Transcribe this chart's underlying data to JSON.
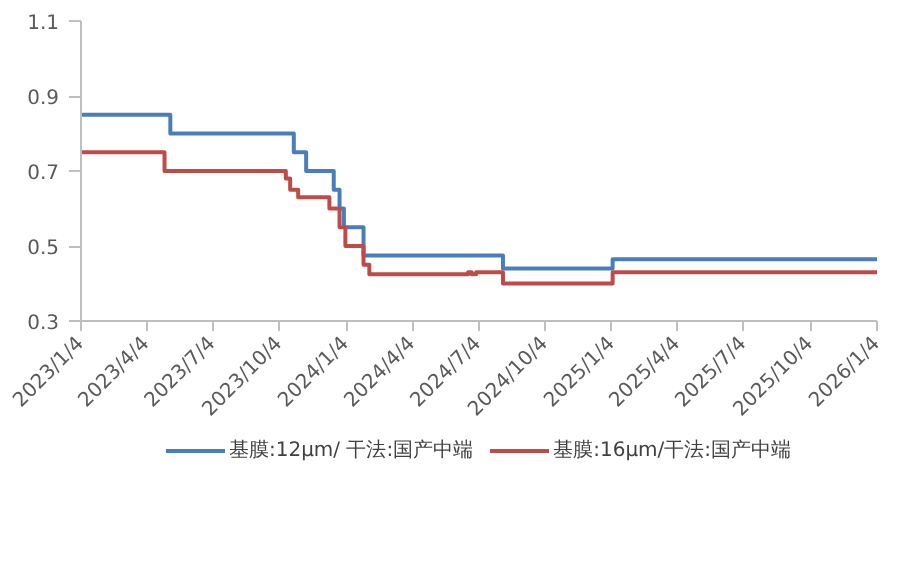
{
  "chart_data": {
    "type": "step",
    "legend": "bottom",
    "grid": false,
    "xlim": [
      "2023-01-04",
      "2026-01-04"
    ],
    "xticks": [
      {
        "value": "2023-01-04",
        "label": "2023/1/4"
      },
      {
        "value": "2023-04-04",
        "label": "2023/4/4"
      },
      {
        "value": "2023-07-04",
        "label": "2023/7/4"
      },
      {
        "value": "2023-10-04",
        "label": "2023/10/4"
      },
      {
        "value": "2024-01-04",
        "label": "2024/1/4"
      },
      {
        "value": "2024-04-04",
        "label": "2024/4/4"
      },
      {
        "value": "2024-07-04",
        "label": "2024/7/4"
      },
      {
        "value": "2024-10-04",
        "label": "2024/10/4"
      },
      {
        "value": "2025-01-04",
        "label": "2025/1/4"
      },
      {
        "value": "2025-04-04",
        "label": "2025/4/4"
      },
      {
        "value": "2025-07-04",
        "label": "2025/7/4"
      },
      {
        "value": "2025-10-04",
        "label": "2025/10/4"
      },
      {
        "value": "2026-01-04",
        "label": "2026/1/4"
      }
    ],
    "ylim": [
      0.3,
      1.1
    ],
    "yticks": [
      0.3,
      0.5,
      0.7,
      0.9,
      1.1
    ],
    "series": [
      {
        "name": "基膜:12μm/ 干法:国产中端",
        "color": "#4a7ebb",
        "x": [
          "2023-01-04",
          "2023-05-07",
          "2023-10-24",
          "2023-11-10",
          "2023-12-18",
          "2023-12-26",
          "2024-01-01",
          "2024-01-28",
          "2024-08-07",
          "2025-01-05",
          "2026-01-04"
        ],
        "values": [
          0.85,
          0.8,
          0.75,
          0.7,
          0.65,
          0.6,
          0.55,
          0.475,
          0.44,
          0.465,
          0.465
        ]
      },
      {
        "name": "基膜:16μm/干法:国产中端",
        "color": "#be4b48",
        "x": [
          "2023-01-04",
          "2023-04-29",
          "2023-10-13",
          "2023-10-19",
          "2023-10-30",
          "2023-12-12",
          "2023-12-26",
          "2024-01-03",
          "2024-01-28",
          "2024-02-05",
          "2024-06-20",
          "2024-06-25",
          "2024-07-01",
          "2024-08-07",
          "2025-01-05",
          "2026-01-04"
        ],
        "values": [
          0.75,
          0.7,
          0.68,
          0.65,
          0.63,
          0.6,
          0.55,
          0.5,
          0.45,
          0.425,
          0.43,
          0.425,
          0.43,
          0.4,
          0.43,
          0.43
        ]
      }
    ]
  }
}
